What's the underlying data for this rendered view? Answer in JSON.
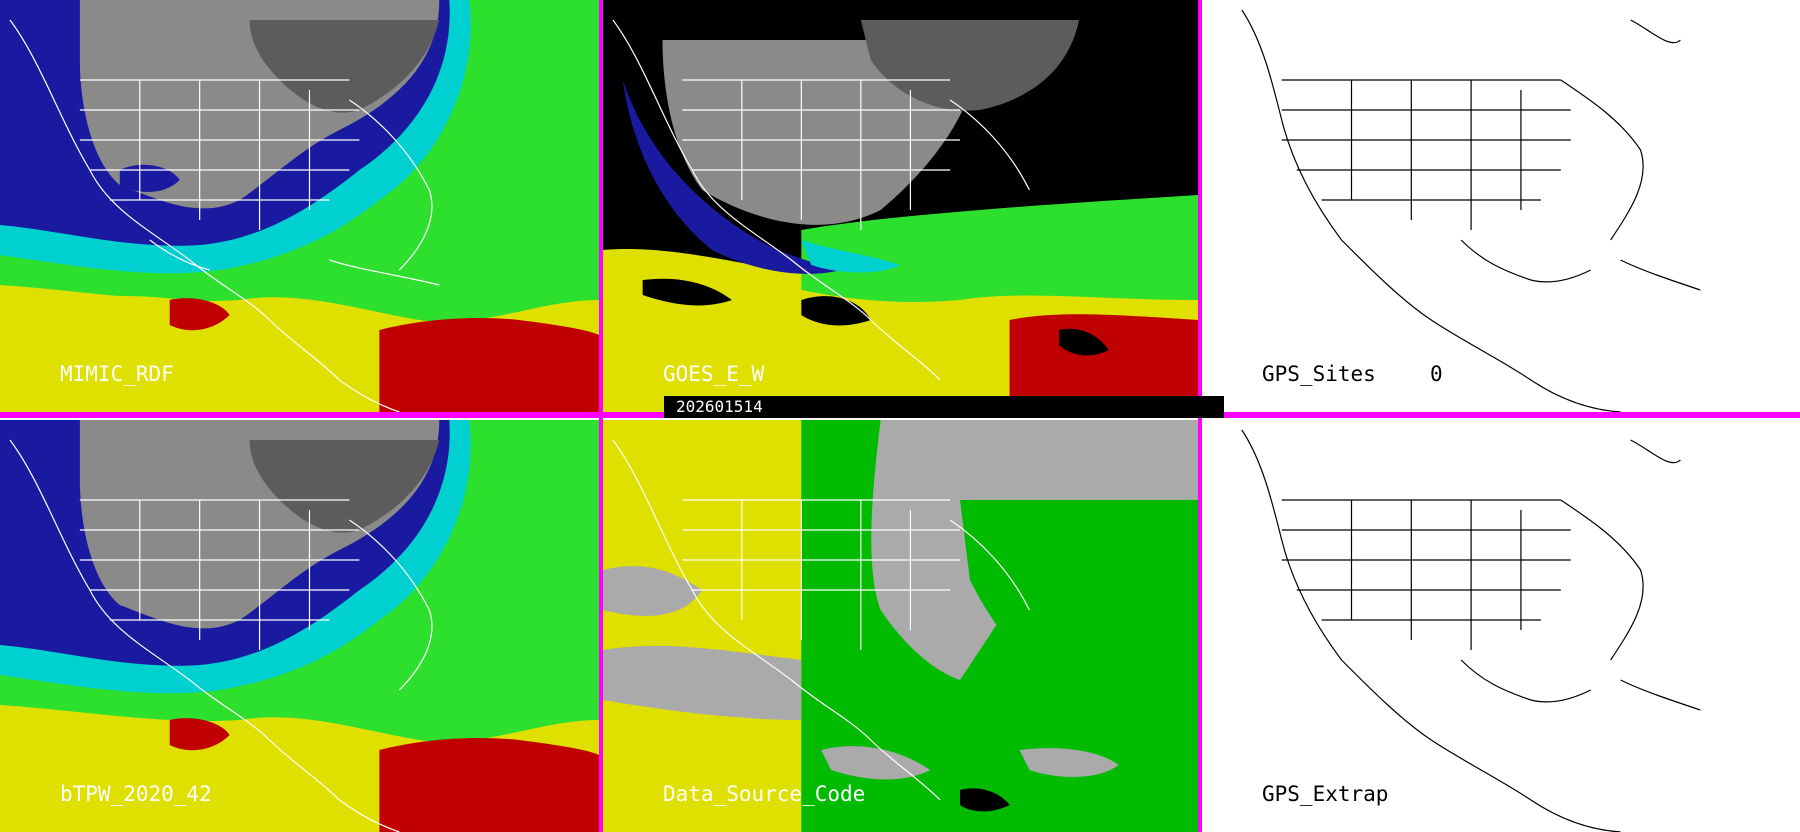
{
  "colors": {
    "divider": "#ff00ff",
    "palette_tpw": [
      "#7a7a7a",
      "#1a1aa0",
      "#00d0d0",
      "#2ee02e",
      "#e0e000",
      "#c00000"
    ],
    "data_source": {
      "satellite_a": "#e0e000",
      "satellite_b": "#00bb00",
      "no_data": "#aaaaaa"
    }
  },
  "timestamp": "202601514",
  "panels": [
    {
      "id": "mimic_rdf",
      "label": "MIMIC_RDF",
      "type": "tpw-field",
      "label_color": "light"
    },
    {
      "id": "goes_ew",
      "label": "GOES_E_W",
      "type": "tpw-field-masked",
      "label_color": "light"
    },
    {
      "id": "gps_sites",
      "label": "GPS_Sites",
      "count_value": "0",
      "type": "basemap",
      "label_color": "dark"
    },
    {
      "id": "btpw",
      "label": "bTPW_2020_42",
      "type": "tpw-field",
      "label_color": "light"
    },
    {
      "id": "data_source",
      "label": "Data_Source_Code",
      "type": "source-code",
      "label_color": "light"
    },
    {
      "id": "gps_extrap",
      "label": "GPS_Extrap",
      "type": "basemap",
      "label_color": "dark"
    }
  ]
}
